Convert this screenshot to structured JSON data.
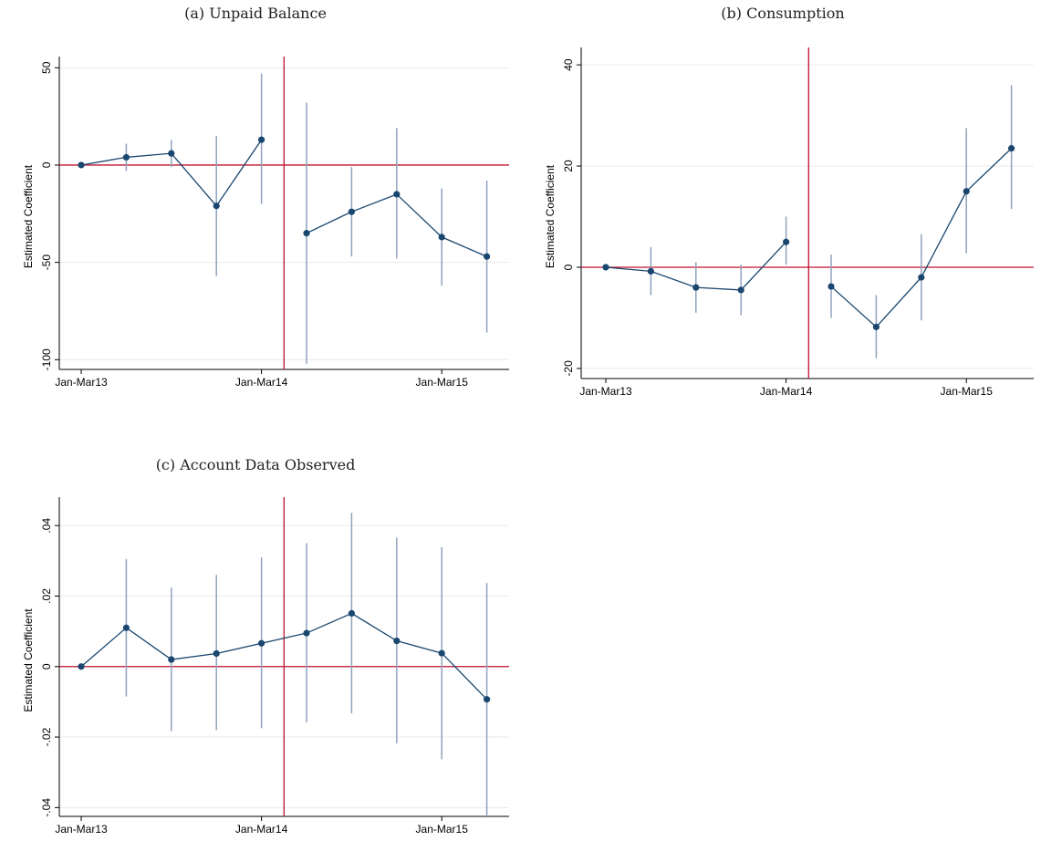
{
  "colors": {
    "series": "#1a476f",
    "ci": "#8fa3bd",
    "ref": "#c0112e",
    "grid": "#eaeaea",
    "axis": "#000000"
  },
  "chart_data": [
    {
      "type": "line",
      "title": "(a) Unpaid Balance",
      "xlabel": "",
      "ylabel": "Estimated Coefficient",
      "x_tick_labels": [
        "Jan-Mar13",
        "Jan-Mar14",
        "Jan-Mar15"
      ],
      "x_tick_index": [
        0,
        4,
        8
      ],
      "y_ticks": [
        50,
        0,
        -50,
        -100
      ],
      "y_tick_labels": [
        "50",
        "0",
        "-50",
        "-100"
      ],
      "ylim": [
        -105,
        52
      ],
      "grid": true,
      "vline_at_index": 4.5,
      "hline_at": 0,
      "points": [
        {
          "i": 0,
          "y": 0,
          "lo": null,
          "hi": null
        },
        {
          "i": 1,
          "y": 4,
          "lo": -3,
          "hi": 11
        },
        {
          "i": 2,
          "y": 6,
          "lo": -1,
          "hi": 13
        },
        {
          "i": 3,
          "y": -21,
          "lo": -57,
          "hi": 15
        },
        {
          "i": 4,
          "y": 13,
          "lo": -20,
          "hi": 47
        },
        {
          "i": 5,
          "y": -35,
          "lo": -102,
          "hi": 32
        },
        {
          "i": 6,
          "y": -24,
          "lo": -47,
          "hi": -1
        },
        {
          "i": 7,
          "y": -15,
          "lo": -48,
          "hi": 19
        },
        {
          "i": 8,
          "y": -37,
          "lo": -62,
          "hi": -12
        },
        {
          "i": 9,
          "y": -47,
          "lo": -86,
          "hi": -8
        }
      ],
      "segments": [
        [
          0,
          4
        ],
        [
          5,
          9
        ]
      ]
    },
    {
      "type": "line",
      "title": "(b) Consumption",
      "xlabel": "",
      "ylabel": "Estimated Coefficient",
      "x_tick_labels": [
        "Jan-Mar13",
        "Jan-Mar14",
        "Jan-Mar15"
      ],
      "x_tick_index": [
        0,
        4,
        8
      ],
      "y_ticks": [
        40,
        20,
        0,
        -20
      ],
      "y_tick_labels": [
        "40",
        "20",
        "0",
        "-20"
      ],
      "ylim": [
        -22,
        42
      ],
      "grid": true,
      "vline_at_index": 4.5,
      "hline_at": 0,
      "points": [
        {
          "i": 0,
          "y": 0,
          "lo": null,
          "hi": null
        },
        {
          "i": 1,
          "y": -0.8,
          "lo": -5.5,
          "hi": 4
        },
        {
          "i": 2,
          "y": -4,
          "lo": -9,
          "hi": 1
        },
        {
          "i": 3,
          "y": -4.5,
          "lo": -9.5,
          "hi": 0.5
        },
        {
          "i": 4,
          "y": 5,
          "lo": 0.5,
          "hi": 10
        },
        {
          "i": 5,
          "y": -3.8,
          "lo": -10,
          "hi": 2.5
        },
        {
          "i": 6,
          "y": -11.8,
          "lo": -18,
          "hi": -5.5
        },
        {
          "i": 7,
          "y": -2,
          "lo": -10.5,
          "hi": 6.5
        },
        {
          "i": 8,
          "y": 15,
          "lo": 2.8,
          "hi": 27.5
        },
        {
          "i": 9,
          "y": 23.5,
          "lo": 11.5,
          "hi": 36
        }
      ],
      "segments": [
        [
          0,
          4
        ],
        [
          5,
          9
        ]
      ]
    },
    {
      "type": "line",
      "title": "(c) Account Data Observed",
      "xlabel": "",
      "ylabel": "Estimated Coefficient",
      "x_tick_labels": [
        "Jan-Mar13",
        "Jan-Mar14",
        "Jan-Mar15"
      ],
      "x_tick_index": [
        0,
        4,
        8
      ],
      "y_ticks": [
        0.04,
        0.02,
        0,
        -0.02,
        -0.04
      ],
      "y_tick_labels": [
        ".04",
        ".02",
        "0",
        "-.02",
        "-.04"
      ],
      "ylim": [
        -0.0425,
        0.046
      ],
      "grid": true,
      "vline_at_index": 4.5,
      "hline_at": 0,
      "points": [
        {
          "i": 0,
          "y": 0,
          "lo": null,
          "hi": null
        },
        {
          "i": 1,
          "y": 0.011,
          "lo": -0.0085,
          "hi": 0.0305
        },
        {
          "i": 2,
          "y": 0.002,
          "lo": -0.0183,
          "hi": 0.0224
        },
        {
          "i": 3,
          "y": 0.0037,
          "lo": -0.018,
          "hi": 0.026
        },
        {
          "i": 4,
          "y": 0.0066,
          "lo": -0.0175,
          "hi": 0.031
        },
        {
          "i": 5,
          "y": 0.0095,
          "lo": -0.0158,
          "hi": 0.035
        },
        {
          "i": 6,
          "y": 0.0151,
          "lo": -0.0133,
          "hi": 0.0436
        },
        {
          "i": 7,
          "y": 0.0073,
          "lo": -0.0218,
          "hi": 0.0366
        },
        {
          "i": 8,
          "y": 0.0038,
          "lo": -0.0263,
          "hi": 0.0339
        },
        {
          "i": 9,
          "y": -0.0093,
          "lo": -0.0425,
          "hi": 0.0237
        }
      ],
      "segments": [
        [
          0,
          9
        ]
      ]
    }
  ]
}
